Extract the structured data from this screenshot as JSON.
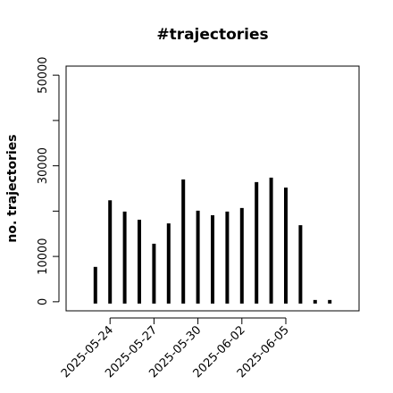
{
  "chart_data": {
    "type": "bar",
    "title": "#trajectories",
    "y_label": "no. trajectories",
    "x": [
      "2025-05-23",
      "2025-05-24",
      "2025-05-25",
      "2025-05-26",
      "2025-05-27",
      "2025-05-28",
      "2025-05-29",
      "2025-05-30",
      "2025-05-31",
      "2025-06-01",
      "2025-06-02",
      "2025-06-03",
      "2025-06-04",
      "2025-06-05",
      "2025-06-06",
      "2025-06-07",
      "2025-06-08"
    ],
    "values": [
      7300,
      22000,
      19500,
      17700,
      12400,
      16900,
      26600,
      19700,
      18700,
      19500,
      20300,
      26000,
      27000,
      24800,
      16500,
      0,
      0
    ],
    "color": "#000000",
    "xlim": [
      "2025-05-21",
      "2025-06-10"
    ],
    "xticks": [
      "2025-05-24",
      "2025-05-27",
      "2025-05-30",
      "2025-06-02",
      "2025-06-05"
    ],
    "ylim": [
      -2000,
      52000
    ],
    "yticks": [
      0,
      10000,
      {
        "value": 20000,
        "label": null
      },
      30000,
      {
        "value": 40000,
        "label": null
      },
      50000
    ]
  }
}
